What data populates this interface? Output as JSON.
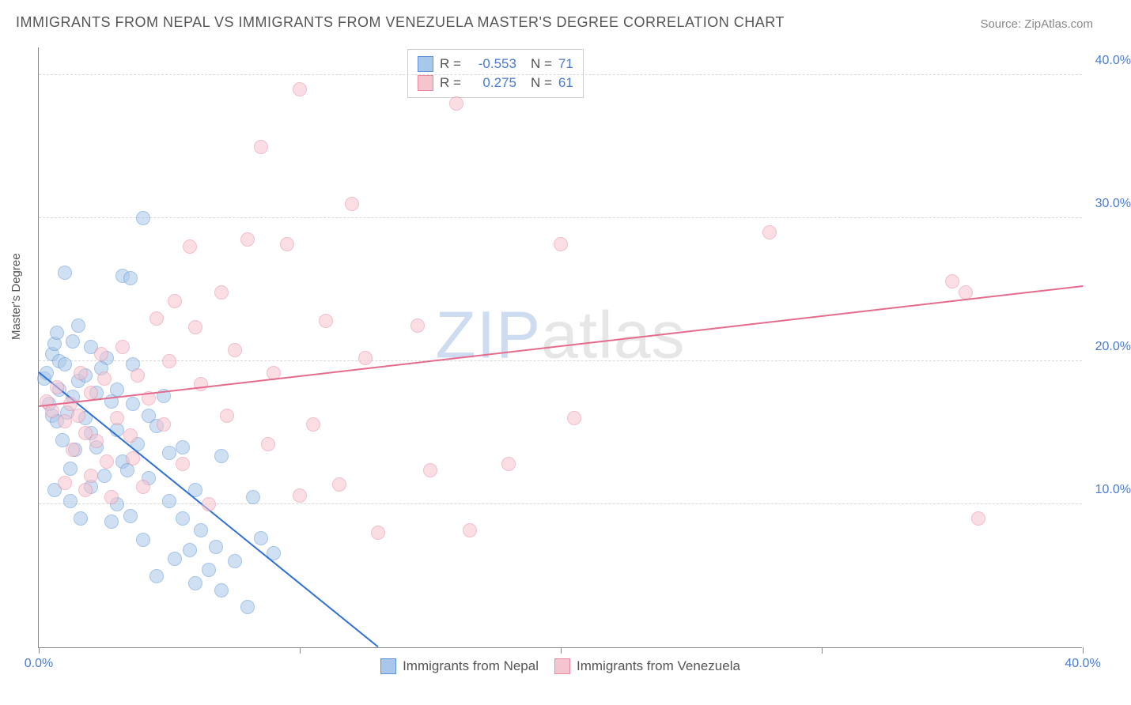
{
  "title": "IMMIGRANTS FROM NEPAL VS IMMIGRANTS FROM VENEZUELA MASTER'S DEGREE CORRELATION CHART",
  "source_label": "Source: ZipAtlas.com",
  "ylabel": "Master's Degree",
  "watermark": {
    "part1": "ZIP",
    "part2": "atlas"
  },
  "chart": {
    "type": "scatter",
    "background_color": "#ffffff",
    "grid_color": "#d8d8d8",
    "axis_color": "#888888",
    "tick_label_color": "#4a7bd0",
    "tick_fontsize": 16,
    "title_fontsize": 18,
    "label_fontsize": 15,
    "marker_radius": 9,
    "marker_opacity": 0.55,
    "xlim": [
      0,
      40
    ],
    "ylim": [
      0,
      42
    ],
    "x_ticks": [
      0,
      10,
      20,
      30,
      40
    ],
    "x_tick_labels": [
      "0.0%",
      "",
      "",
      "",
      "40.0%"
    ],
    "y_gridlines": [
      10,
      20,
      30,
      40
    ],
    "y_tick_labels": [
      "10.0%",
      "20.0%",
      "30.0%",
      "40.0%"
    ],
    "series": [
      {
        "name": "Immigrants from Nepal",
        "fill_color": "#a9c7ea",
        "stroke_color": "#5e94d4",
        "R": "-0.553",
        "N": "71",
        "trend": {
          "x1": 0,
          "y1": 19.2,
          "x2": 13,
          "y2": 0,
          "color": "#2e6fd6",
          "width": 2
        },
        "points": [
          [
            0.2,
            18.8
          ],
          [
            0.3,
            19.2
          ],
          [
            0.4,
            17.0
          ],
          [
            0.5,
            16.2
          ],
          [
            0.5,
            20.5
          ],
          [
            0.6,
            21.2
          ],
          [
            0.7,
            15.8
          ],
          [
            0.7,
            22.0
          ],
          [
            0.8,
            18.0
          ],
          [
            0.8,
            20.0
          ],
          [
            0.9,
            14.5
          ],
          [
            1.0,
            19.8
          ],
          [
            1.0,
            26.2
          ],
          [
            1.1,
            16.4
          ],
          [
            1.2,
            10.2
          ],
          [
            1.2,
            12.5
          ],
          [
            1.3,
            17.5
          ],
          [
            1.3,
            21.4
          ],
          [
            1.4,
            13.8
          ],
          [
            1.5,
            18.6
          ],
          [
            1.6,
            9.0
          ],
          [
            1.8,
            16.0
          ],
          [
            1.8,
            19.0
          ],
          [
            2.0,
            11.2
          ],
          [
            0.6,
            11.0
          ],
          [
            2.0,
            21.0
          ],
          [
            2.2,
            14.0
          ],
          [
            2.2,
            17.8
          ],
          [
            2.5,
            12.0
          ],
          [
            2.6,
            20.2
          ],
          [
            2.8,
            8.8
          ],
          [
            3.0,
            15.2
          ],
          [
            3.0,
            10.0
          ],
          [
            3.2,
            13.0
          ],
          [
            3.2,
            26.0
          ],
          [
            3.5,
            9.2
          ],
          [
            3.5,
            25.8
          ],
          [
            3.6,
            17.0
          ],
          [
            3.8,
            14.2
          ],
          [
            4.0,
            30.0
          ],
          [
            4.0,
            7.5
          ],
          [
            4.2,
            11.8
          ],
          [
            4.5,
            15.5
          ],
          [
            4.5,
            5.0
          ],
          [
            5.0,
            10.2
          ],
          [
            5.0,
            13.6
          ],
          [
            5.2,
            6.2
          ],
          [
            5.5,
            14.0
          ],
          [
            5.5,
            9.0
          ],
          [
            5.8,
            6.8
          ],
          [
            6.0,
            11.0
          ],
          [
            6.0,
            4.5
          ],
          [
            6.2,
            8.2
          ],
          [
            6.5,
            5.4
          ],
          [
            6.8,
            7.0
          ],
          [
            7.0,
            4.0
          ],
          [
            7.0,
            13.4
          ],
          [
            7.5,
            6.0
          ],
          [
            8.0,
            2.8
          ],
          [
            8.2,
            10.5
          ],
          [
            8.5,
            7.6
          ],
          [
            9.0,
            6.6
          ],
          [
            3.0,
            18.0
          ],
          [
            1.5,
            22.5
          ],
          [
            2.8,
            17.2
          ],
          [
            3.6,
            19.8
          ],
          [
            4.8,
            17.6
          ],
          [
            2.0,
            15.0
          ],
          [
            3.4,
            12.4
          ],
          [
            4.2,
            16.2
          ],
          [
            2.4,
            19.5
          ]
        ]
      },
      {
        "name": "Immigrants from Venezuela",
        "fill_color": "#f6c4cf",
        "stroke_color": "#e98aa0",
        "R": "0.275",
        "N": "61",
        "trend": {
          "x1": 0,
          "y1": 16.8,
          "x2": 40,
          "y2": 25.2,
          "color": "#e56b8c",
          "width": 2
        },
        "points": [
          [
            0.3,
            17.2
          ],
          [
            0.5,
            16.5
          ],
          [
            0.7,
            18.2
          ],
          [
            1.0,
            15.8
          ],
          [
            1.2,
            17.0
          ],
          [
            1.3,
            13.8
          ],
          [
            1.5,
            16.2
          ],
          [
            1.6,
            19.2
          ],
          [
            1.8,
            15.0
          ],
          [
            2.0,
            12.0
          ],
          [
            2.0,
            17.8
          ],
          [
            2.2,
            14.4
          ],
          [
            2.5,
            18.8
          ],
          [
            2.6,
            13.0
          ],
          [
            2.8,
            10.5
          ],
          [
            3.0,
            16.0
          ],
          [
            3.2,
            21.0
          ],
          [
            3.5,
            14.8
          ],
          [
            3.8,
            19.0
          ],
          [
            4.0,
            11.2
          ],
          [
            4.2,
            17.4
          ],
          [
            4.5,
            23.0
          ],
          [
            4.8,
            15.6
          ],
          [
            5.0,
            20.0
          ],
          [
            5.2,
            24.2
          ],
          [
            5.5,
            12.8
          ],
          [
            6.0,
            22.4
          ],
          [
            6.2,
            18.4
          ],
          [
            6.5,
            10.0
          ],
          [
            7.0,
            24.8
          ],
          [
            7.2,
            16.2
          ],
          [
            7.5,
            20.8
          ],
          [
            8.0,
            28.5
          ],
          [
            8.5,
            35.0
          ],
          [
            8.8,
            14.2
          ],
          [
            9.0,
            19.2
          ],
          [
            9.5,
            28.2
          ],
          [
            10.0,
            39.0
          ],
          [
            10.0,
            10.6
          ],
          [
            10.5,
            15.6
          ],
          [
            11.0,
            22.8
          ],
          [
            11.5,
            11.4
          ],
          [
            12.0,
            31.0
          ],
          [
            12.5,
            20.2
          ],
          [
            13.0,
            8.0
          ],
          [
            14.5,
            22.5
          ],
          [
            15.0,
            12.4
          ],
          [
            16.0,
            38.0
          ],
          [
            16.5,
            8.2
          ],
          [
            18.0,
            12.8
          ],
          [
            20.0,
            28.2
          ],
          [
            20.5,
            16.0
          ],
          [
            28.0,
            29.0
          ],
          [
            35.0,
            25.6
          ],
          [
            35.5,
            24.8
          ],
          [
            36.0,
            9.0
          ],
          [
            1.0,
            11.5
          ],
          [
            1.8,
            11.0
          ],
          [
            2.4,
            20.5
          ],
          [
            3.6,
            13.2
          ],
          [
            5.8,
            28.0
          ]
        ]
      }
    ],
    "legend_bottom": [
      {
        "label": "Immigrants from Nepal",
        "fill": "#a9c7ea",
        "stroke": "#5e94d4"
      },
      {
        "label": "Immigrants from Venezuela",
        "fill": "#f6c4cf",
        "stroke": "#e98aa0"
      }
    ],
    "legend_top": {
      "r_label": "R =",
      "n_label": "N ="
    }
  }
}
